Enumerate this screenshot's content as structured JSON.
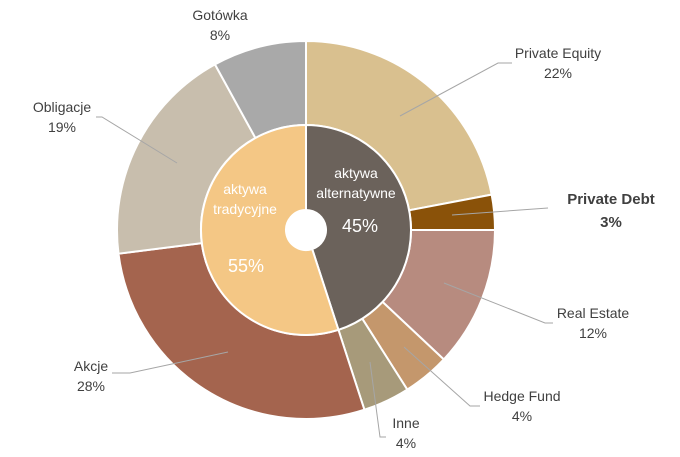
{
  "chart_data": {
    "type": "pie",
    "variant": "nested-donut",
    "inner_ring": [
      {
        "label_line1": "aktywa",
        "label_line2": "alternatywne",
        "value": 45,
        "pct_label": "45%",
        "color": "#6B625B"
      },
      {
        "label_line1": "aktywa",
        "label_line2": "tradycyjne",
        "value": 55,
        "pct_label": "55%",
        "color": "#F4C785"
      }
    ],
    "outer_ring": [
      {
        "label": "Private Equity",
        "value": 22,
        "pct_label": "22%",
        "color": "#D9C08F",
        "bold": false
      },
      {
        "label": "Private Debt",
        "value": 3,
        "pct_label": "3%",
        "color": "#8A5209",
        "bold": true
      },
      {
        "label": "Real Estate",
        "value": 12,
        "pct_label": "12%",
        "color": "#B78B7F",
        "bold": false
      },
      {
        "label": "Hedge Fund",
        "value": 4,
        "pct_label": "4%",
        "color": "#C4976C",
        "bold": false
      },
      {
        "label": "Inne",
        "value": 4,
        "pct_label": "4%",
        "color": "#A79A7A",
        "bold": false
      },
      {
        "label": "Akcje",
        "value": 28,
        "pct_label": "28%",
        "color": "#A4644E",
        "bold": false
      },
      {
        "label": "Obligacje",
        "value": 19,
        "pct_label": "19%",
        "color": "#C8BEAD",
        "bold": false
      },
      {
        "label": "Gotówka",
        "value": 8,
        "pct_label": "8%",
        "color": "#A9A9A9",
        "bold": false
      }
    ],
    "leader_line_color": "#A6A6A6"
  }
}
